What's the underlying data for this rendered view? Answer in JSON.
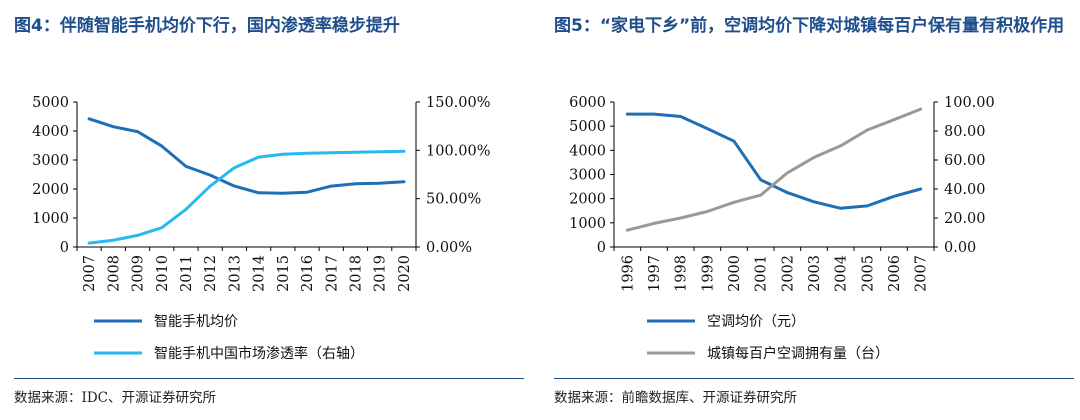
{
  "left_title": "图4：伴随智能手机均价下行，国内渗透率稳步提升",
  "right_title": "图5：“家电下乡”前，空调均价下降对城镇每百户保有量有积极作用",
  "left_source": "数据来源：IDC、开源证券研究所",
  "right_source": "数据来源：前瞻数据库、开源证券研究所",
  "chart_data": [
    {
      "type": "line",
      "title": "图4：伴随智能手机均价下行，国内渗透率稳步提升",
      "x": [
        "2007",
        "2008",
        "2009",
        "2010",
        "2011",
        "2012",
        "2013",
        "2014",
        "2015",
        "2016",
        "2017",
        "2018",
        "2019",
        "2020"
      ],
      "ylim_left": [
        0,
        5000
      ],
      "yticks_left": [
        "0",
        "1000",
        "2000",
        "3000",
        "4000",
        "5000"
      ],
      "ytick_values_left": [
        0,
        1000,
        2000,
        3000,
        4000,
        5000
      ],
      "ylim_right": [
        0,
        150
      ],
      "yticks_right": [
        "0.00%",
        "50.00%",
        "100.00%",
        "150.00%"
      ],
      "ytick_values_right": [
        0,
        50,
        100,
        150
      ],
      "series": [
        {
          "name": "智能手机均价",
          "axis": "left",
          "color": "#1f6fb5",
          "values": [
            4420,
            4150,
            3980,
            3480,
            2780,
            2480,
            2100,
            1870,
            1850,
            1890,
            2100,
            2180,
            2200,
            2250
          ]
        },
        {
          "name": "智能手机中国市场渗透率（右轴）",
          "axis": "right",
          "color": "#27b9ef",
          "values": [
            4,
            7,
            12,
            20,
            39,
            63,
            82,
            93,
            96,
            97,
            97.5,
            98,
            98.5,
            99
          ]
        }
      ]
    },
    {
      "type": "line",
      "title": "图5：“家电下乡”前，空调均价下降对城镇每百户保有量有积极作用",
      "x": [
        "1996",
        "1997",
        "1998",
        "1999",
        "2000",
        "2001",
        "2002",
        "2003",
        "2004",
        "2005",
        "2006",
        "2007"
      ],
      "ylim_left": [
        0,
        6000
      ],
      "yticks_left": [
        "0",
        "1000",
        "2000",
        "3000",
        "4000",
        "5000",
        "6000"
      ],
      "ytick_values_left": [
        0,
        1000,
        2000,
        3000,
        4000,
        5000,
        6000
      ],
      "ylim_right": [
        0,
        100
      ],
      "yticks_right": [
        "0.00",
        "20.00",
        "40.00",
        "60.00",
        "80.00",
        "100.00"
      ],
      "ytick_values_right": [
        0,
        20,
        40,
        60,
        80,
        100
      ],
      "series": [
        {
          "name": "空调均价（元）",
          "axis": "left",
          "color": "#1f6fb5",
          "values": [
            5500,
            5500,
            5400,
            4900,
            4380,
            2780,
            2250,
            1870,
            1600,
            1700,
            2100,
            2400
          ]
        },
        {
          "name": "城镇每百户空调拥有量（台）",
          "axis": "right",
          "color": "#999999",
          "values": [
            11.6,
            16.3,
            20.0,
            24.5,
            30.8,
            35.8,
            51.1,
            61.8,
            69.8,
            80.7,
            87.8,
            95.1
          ]
        }
      ]
    }
  ]
}
